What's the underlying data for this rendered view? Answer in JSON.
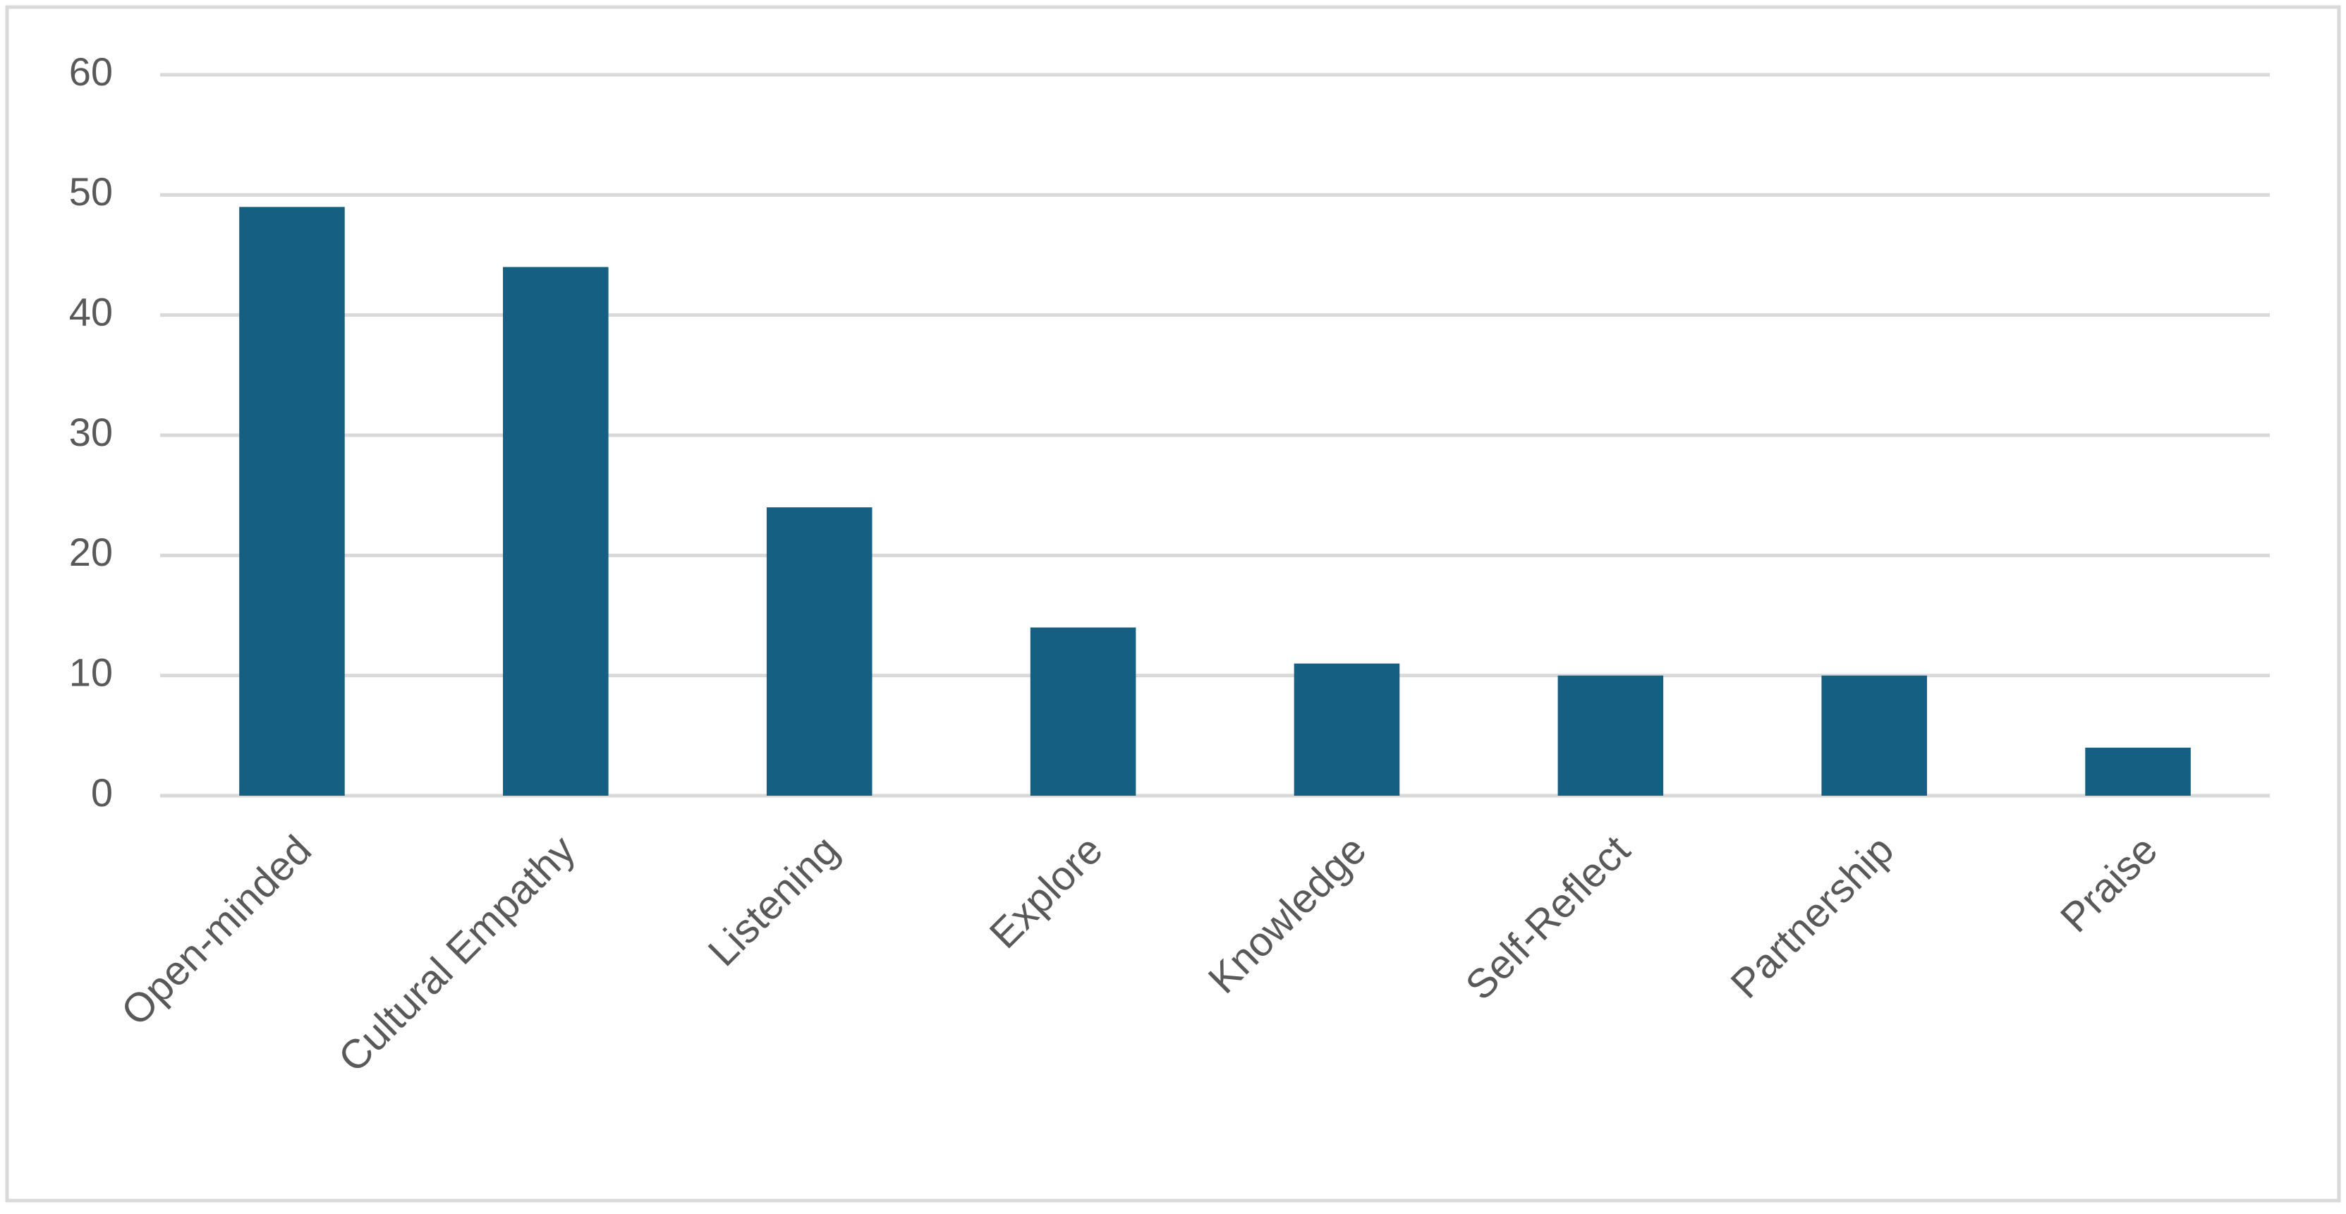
{
  "chart_data": {
    "type": "bar",
    "categories": [
      "Open-minded",
      "Cultural Empathy",
      "Listening",
      "Explore",
      "Knowledge",
      "Self-Reflect",
      "Partnership",
      "Praise"
    ],
    "values": [
      49,
      44,
      24,
      14,
      11,
      10,
      10,
      4
    ],
    "color": "#155f82",
    "ylim": [
      0,
      60
    ],
    "yticks": [
      0,
      10,
      20,
      30,
      40,
      50,
      60
    ],
    "grid": true
  }
}
